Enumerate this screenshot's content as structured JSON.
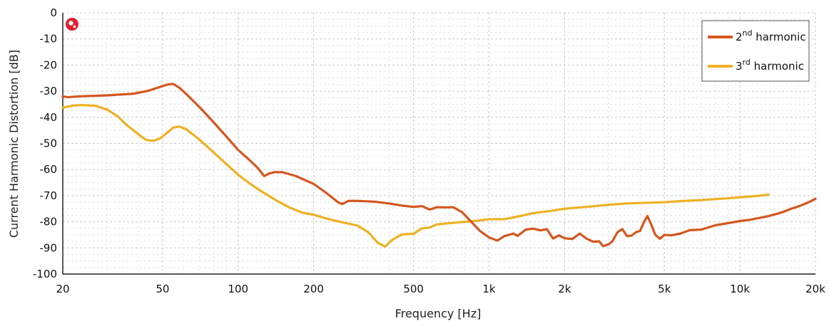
{
  "colors": {
    "series_2nd": "#d4561e",
    "series_3rd": "#edb123",
    "logo": "#e02030",
    "grid_major": "#c8c8c8",
    "grid_minor": "#dcdcdc"
  },
  "logo": {
    "icon": "brand-logo-icon"
  },
  "chart_data": {
    "type": "line",
    "x_scale": "log",
    "xlabel": "Frequency [Hz]",
    "ylabel": "Current Harmonic Distortion [dB]",
    "xlim": [
      20,
      20000
    ],
    "ylim": [
      -100,
      0
    ],
    "grid": true,
    "legend_position": "top-right",
    "x_ticks": [
      {
        "value": 20,
        "label": "20"
      },
      {
        "value": 50,
        "label": "50"
      },
      {
        "value": 100,
        "label": "100"
      },
      {
        "value": 200,
        "label": "200"
      },
      {
        "value": 500,
        "label": "500"
      },
      {
        "value": 1000,
        "label": "1k"
      },
      {
        "value": 2000,
        "label": "2k"
      },
      {
        "value": 5000,
        "label": "5k"
      },
      {
        "value": 10000,
        "label": "10k"
      },
      {
        "value": 20000,
        "label": "20k"
      }
    ],
    "y_ticks": [
      {
        "value": 0,
        "label": "0"
      },
      {
        "value": -10,
        "label": "-10"
      },
      {
        "value": -20,
        "label": "-20"
      },
      {
        "value": -30,
        "label": "-30"
      },
      {
        "value": -40,
        "label": "-40"
      },
      {
        "value": -50,
        "label": "-50"
      },
      {
        "value": -60,
        "label": "-60"
      },
      {
        "value": -70,
        "label": "-70"
      },
      {
        "value": -80,
        "label": "-80"
      },
      {
        "value": -90,
        "label": "-90"
      },
      {
        "value": -100,
        "label": "-100"
      }
    ],
    "series": [
      {
        "name": "2nd harmonic",
        "name_base": "2",
        "name_sup": "nd",
        "name_rest": " harmonic",
        "points": [
          [
            20,
            -32
          ],
          [
            21,
            -32.3
          ],
          [
            23,
            -32
          ],
          [
            30,
            -31.6
          ],
          [
            38,
            -31
          ],
          [
            44,
            -29.8
          ],
          [
            48,
            -28.6
          ],
          [
            52,
            -27.5
          ],
          [
            55,
            -27.2
          ],
          [
            58,
            -28.5
          ],
          [
            62,
            -31
          ],
          [
            70,
            -36
          ],
          [
            80,
            -42
          ],
          [
            90,
            -47.5
          ],
          [
            100,
            -52.5
          ],
          [
            110,
            -56
          ],
          [
            120,
            -59.5
          ],
          [
            127,
            -62.5
          ],
          [
            133,
            -61.5
          ],
          [
            140,
            -61
          ],
          [
            150,
            -61
          ],
          [
            170,
            -62.5
          ],
          [
            200,
            -65.5
          ],
          [
            225,
            -69
          ],
          [
            250,
            -72.5
          ],
          [
            260,
            -73.2
          ],
          [
            275,
            -72
          ],
          [
            300,
            -72
          ],
          [
            350,
            -72.3
          ],
          [
            400,
            -73
          ],
          [
            450,
            -73.8
          ],
          [
            500,
            -74.3
          ],
          [
            540,
            -74
          ],
          [
            580,
            -75.3
          ],
          [
            620,
            -74.4
          ],
          [
            670,
            -74.5
          ],
          [
            720,
            -74.4
          ],
          [
            780,
            -76.3
          ],
          [
            850,
            -80
          ],
          [
            920,
            -83.5
          ],
          [
            1000,
            -86
          ],
          [
            1080,
            -87.2
          ],
          [
            1150,
            -85.5
          ],
          [
            1250,
            -84.5
          ],
          [
            1300,
            -85.4
          ],
          [
            1400,
            -83
          ],
          [
            1500,
            -82.6
          ],
          [
            1600,
            -83.3
          ],
          [
            1700,
            -82.8
          ],
          [
            1800,
            -86.4
          ],
          [
            1900,
            -85.2
          ],
          [
            2000,
            -86.3
          ],
          [
            2150,
            -86.6
          ],
          [
            2300,
            -84.5
          ],
          [
            2450,
            -86.5
          ],
          [
            2600,
            -87.6
          ],
          [
            2750,
            -87.5
          ],
          [
            2850,
            -89.3
          ],
          [
            3000,
            -88.6
          ],
          [
            3100,
            -87.5
          ],
          [
            3250,
            -84
          ],
          [
            3400,
            -82.8
          ],
          [
            3550,
            -85.5
          ],
          [
            3700,
            -85.3
          ],
          [
            3850,
            -84
          ],
          [
            4000,
            -83.5
          ],
          [
            4150,
            -80
          ],
          [
            4280,
            -77.8
          ],
          [
            4450,
            -81.5
          ],
          [
            4600,
            -85
          ],
          [
            4800,
            -86.5
          ],
          [
            5000,
            -85
          ],
          [
            5300,
            -85.2
          ],
          [
            5800,
            -84.5
          ],
          [
            6300,
            -83.2
          ],
          [
            7000,
            -83
          ],
          [
            8000,
            -81.3
          ],
          [
            9000,
            -80.5
          ],
          [
            10000,
            -79.7
          ],
          [
            11000,
            -79.2
          ],
          [
            12000,
            -78.5
          ],
          [
            13000,
            -77.8
          ],
          [
            14000,
            -77
          ],
          [
            15000,
            -76.1
          ],
          [
            16000,
            -75
          ],
          [
            17000,
            -74.2
          ],
          [
            18000,
            -73.3
          ],
          [
            19000,
            -72.3
          ],
          [
            20000,
            -71.2
          ]
        ]
      },
      {
        "name": "3rd harmonic",
        "name_base": "3",
        "name_sup": "rd",
        "name_rest": " harmonic",
        "points": [
          [
            20,
            -36.3
          ],
          [
            22,
            -35.5
          ],
          [
            24,
            -35.3
          ],
          [
            27,
            -35.6
          ],
          [
            30,
            -37
          ],
          [
            33,
            -39.5
          ],
          [
            36,
            -43
          ],
          [
            40,
            -46.5
          ],
          [
            43,
            -48.7
          ],
          [
            46,
            -49
          ],
          [
            49,
            -48
          ],
          [
            52,
            -46
          ],
          [
            55,
            -44
          ],
          [
            58,
            -43.5
          ],
          [
            62,
            -44.5
          ],
          [
            70,
            -48.5
          ],
          [
            80,
            -53.5
          ],
          [
            90,
            -58
          ],
          [
            100,
            -62
          ],
          [
            110,
            -65
          ],
          [
            120,
            -67.5
          ],
          [
            140,
            -71.5
          ],
          [
            160,
            -74.5
          ],
          [
            180,
            -76.5
          ],
          [
            200,
            -77.3
          ],
          [
            230,
            -79
          ],
          [
            260,
            -80.2
          ],
          [
            300,
            -81.5
          ],
          [
            330,
            -84
          ],
          [
            360,
            -88
          ],
          [
            385,
            -89.5
          ],
          [
            410,
            -87
          ],
          [
            450,
            -84.8
          ],
          [
            500,
            -84.6
          ],
          [
            540,
            -82.5
          ],
          [
            580,
            -82.2
          ],
          [
            620,
            -81
          ],
          [
            700,
            -80.5
          ],
          [
            800,
            -80
          ],
          [
            900,
            -79.6
          ],
          [
            1000,
            -79
          ],
          [
            1150,
            -79
          ],
          [
            1300,
            -78
          ],
          [
            1500,
            -76.7
          ],
          [
            1800,
            -75.7
          ],
          [
            2000,
            -75
          ],
          [
            2500,
            -74.2
          ],
          [
            3000,
            -73.5
          ],
          [
            3500,
            -73
          ],
          [
            4000,
            -72.8
          ],
          [
            5000,
            -72.5
          ],
          [
            6000,
            -72
          ],
          [
            7000,
            -71.7
          ],
          [
            8000,
            -71.3
          ],
          [
            9000,
            -71
          ],
          [
            10000,
            -70.6
          ],
          [
            11000,
            -70.3
          ],
          [
            12000,
            -70
          ],
          [
            13000,
            -69.6
          ]
        ]
      }
    ]
  }
}
